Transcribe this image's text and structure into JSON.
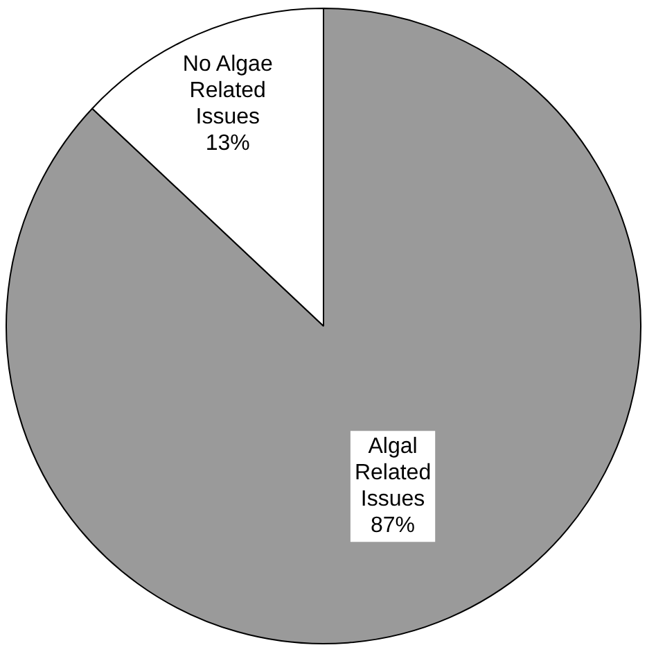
{
  "chart_data": {
    "type": "pie",
    "categories": [
      "Algal Related Issues",
      "No Algae Related Issues"
    ],
    "values": [
      87,
      13
    ],
    "colors": [
      "#9a9a9a",
      "#ffffff"
    ],
    "value_labels": [
      "87%",
      "13%"
    ],
    "legend": false
  }
}
